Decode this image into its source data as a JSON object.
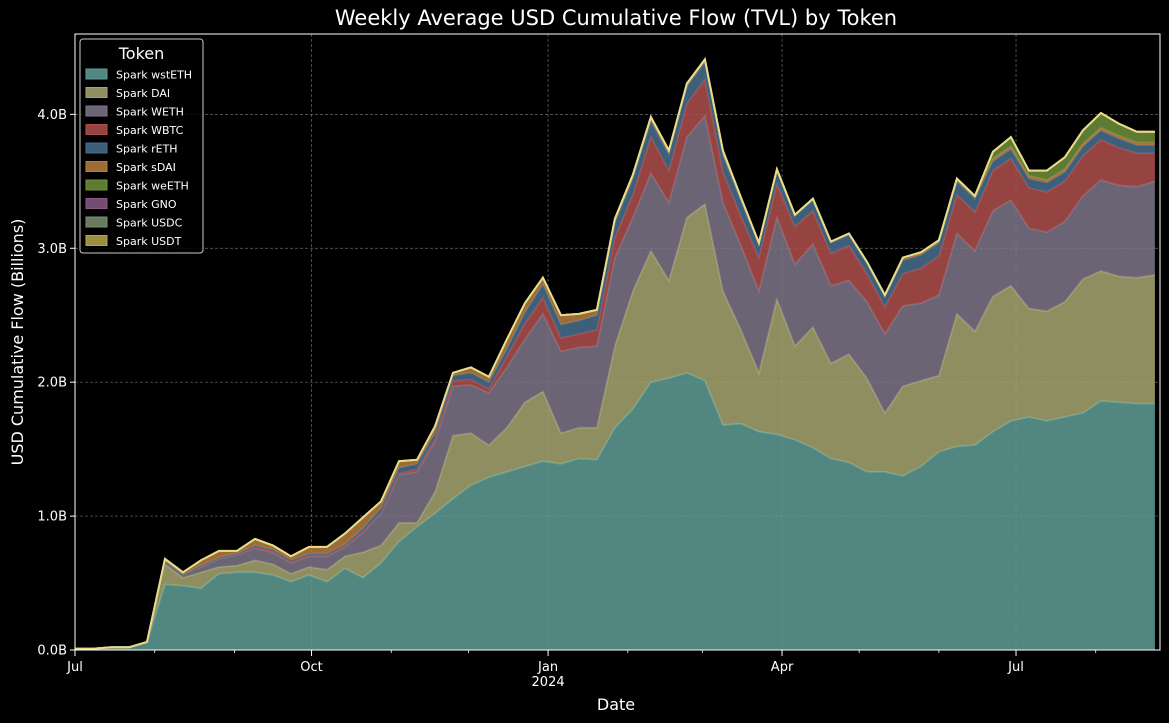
{
  "chart_data": {
    "type": "area",
    "stacked": true,
    "title": "Weekly Average USD Cumulative Flow (TVL) by Token",
    "xlabel": "Date",
    "ylabel": "USD Cumulative Flow (Billions)",
    "ylim": [
      0,
      4.6
    ],
    "yticks": [
      {
        "value": 0,
        "label": "0.0B"
      },
      {
        "value": 1,
        "label": "1.0B"
      },
      {
        "value": 2,
        "label": "2.0B"
      },
      {
        "value": 3,
        "label": "3.0B"
      },
      {
        "value": 4,
        "label": "4.0B"
      }
    ],
    "xticks": [
      {
        "date": "2023-07-01",
        "label": "Jul",
        "sub": ""
      },
      {
        "date": "2023-10-01",
        "label": "Oct",
        "sub": ""
      },
      {
        "date": "2024-01-01",
        "label": "Jan",
        "sub": "2024"
      },
      {
        "date": "2024-04-01",
        "label": "Apr",
        "sub": ""
      },
      {
        "date": "2024-07-01",
        "label": "Jul",
        "sub": ""
      }
    ],
    "xlim": [
      "2023-07-01",
      "2024-08-26"
    ],
    "grid": true,
    "legend": {
      "title": "Token",
      "position": "top-left"
    },
    "x": [
      "2023-07-01",
      "2023-07-08",
      "2023-07-15",
      "2023-07-22",
      "2023-07-29",
      "2023-08-05",
      "2023-08-12",
      "2023-08-19",
      "2023-08-26",
      "2023-09-02",
      "2023-09-09",
      "2023-09-16",
      "2023-09-23",
      "2023-09-30",
      "2023-10-07",
      "2023-10-14",
      "2023-10-21",
      "2023-10-28",
      "2023-11-04",
      "2023-11-11",
      "2023-11-18",
      "2023-11-25",
      "2023-12-02",
      "2023-12-09",
      "2023-12-16",
      "2023-12-23",
      "2023-12-30",
      "2024-01-06",
      "2024-01-13",
      "2024-01-20",
      "2024-01-27",
      "2024-02-03",
      "2024-02-10",
      "2024-02-17",
      "2024-02-24",
      "2024-03-02",
      "2024-03-09",
      "2024-03-16",
      "2024-03-23",
      "2024-03-30",
      "2024-04-06",
      "2024-04-13",
      "2024-04-20",
      "2024-04-27",
      "2024-05-04",
      "2024-05-11",
      "2024-05-18",
      "2024-05-25",
      "2024-06-01",
      "2024-06-08",
      "2024-06-15",
      "2024-06-22",
      "2024-06-29",
      "2024-07-06",
      "2024-07-13",
      "2024-07-20",
      "2024-07-27",
      "2024-08-03",
      "2024-08-10",
      "2024-08-17",
      "2024-08-24"
    ],
    "series": [
      {
        "name": "Spark wstETH",
        "color": "#5f9e98",
        "values": [
          0.01,
          0.01,
          0.02,
          0.02,
          0.06,
          0.49,
          0.48,
          0.46,
          0.57,
          0.58,
          0.58,
          0.56,
          0.51,
          0.56,
          0.51,
          0.61,
          0.54,
          0.65,
          0.81,
          0.92,
          1.02,
          1.13,
          1.23,
          1.29,
          1.33,
          1.37,
          1.41,
          1.39,
          1.43,
          1.42,
          1.66,
          1.8,
          2.0,
          2.03,
          2.07,
          2.01,
          1.68,
          1.69,
          1.63,
          1.61,
          1.57,
          1.51,
          1.43,
          1.4,
          1.33,
          1.33,
          1.3,
          1.37,
          1.48,
          1.52,
          1.53,
          1.63,
          1.71,
          1.74,
          1.71,
          1.74,
          1.77,
          1.86,
          1.85,
          1.84,
          1.84
        ]
      },
      {
        "name": "Spark DAI",
        "color": "#a7a771",
        "values": [
          0,
          0,
          0,
          0,
          0,
          0.15,
          0.06,
          0.12,
          0.05,
          0.05,
          0.09,
          0.08,
          0.06,
          0.06,
          0.09,
          0.09,
          0.19,
          0.13,
          0.14,
          0.03,
          0.16,
          0.47,
          0.39,
          0.24,
          0.33,
          0.48,
          0.52,
          0.23,
          0.23,
          0.24,
          0.61,
          0.88,
          0.98,
          0.73,
          1.16,
          1.32,
          1.0,
          0.7,
          0.44,
          1.01,
          0.7,
          0.9,
          0.71,
          0.81,
          0.7,
          0.44,
          0.67,
          0.64,
          0.57,
          0.99,
          0.85,
          1.01,
          1.01,
          0.81,
          0.82,
          0.86,
          1.0,
          0.97,
          0.94,
          0.94,
          0.96
        ]
      },
      {
        "name": "Spark WETH",
        "color": "#7e7689",
        "values": [
          0,
          0,
          0,
          0,
          0,
          0.02,
          0.02,
          0.04,
          0.06,
          0.08,
          0.09,
          0.09,
          0.08,
          0.08,
          0.1,
          0.07,
          0.15,
          0.24,
          0.36,
          0.38,
          0.38,
          0.37,
          0.36,
          0.39,
          0.45,
          0.47,
          0.58,
          0.61,
          0.6,
          0.61,
          0.66,
          0.55,
          0.58,
          0.58,
          0.6,
          0.66,
          0.66,
          0.63,
          0.61,
          0.61,
          0.61,
          0.62,
          0.58,
          0.55,
          0.57,
          0.59,
          0.6,
          0.58,
          0.6,
          0.6,
          0.6,
          0.64,
          0.64,
          0.6,
          0.59,
          0.6,
          0.62,
          0.68,
          0.68,
          0.68,
          0.7
        ]
      },
      {
        "name": "Spark WBTC",
        "color": "#b0504e",
        "values": [
          0,
          0,
          0,
          0,
          0,
          0,
          0,
          0.01,
          0.01,
          0.01,
          0.01,
          0.01,
          0.01,
          0.01,
          0.01,
          0.01,
          0.01,
          0.01,
          0.01,
          0.02,
          0.02,
          0.04,
          0.04,
          0.03,
          0.08,
          0.12,
          0.12,
          0.1,
          0.1,
          0.12,
          0.15,
          0.17,
          0.27,
          0.24,
          0.25,
          0.27,
          0.23,
          0.22,
          0.25,
          0.25,
          0.28,
          0.25,
          0.24,
          0.26,
          0.21,
          0.2,
          0.24,
          0.26,
          0.29,
          0.29,
          0.29,
          0.3,
          0.31,
          0.3,
          0.3,
          0.3,
          0.3,
          0.3,
          0.28,
          0.25,
          0.21
        ]
      },
      {
        "name": "Spark rETH",
        "color": "#49708f",
        "values": [
          0,
          0,
          0,
          0,
          0,
          0,
          0,
          0,
          0,
          0,
          0.01,
          0.01,
          0.01,
          0.01,
          0.01,
          0.01,
          0.02,
          0.03,
          0.04,
          0.04,
          0.04,
          0.04,
          0.05,
          0.05,
          0.06,
          0.08,
          0.1,
          0.1,
          0.1,
          0.11,
          0.11,
          0.12,
          0.12,
          0.12,
          0.13,
          0.13,
          0.12,
          0.12,
          0.1,
          0.1,
          0.08,
          0.08,
          0.08,
          0.08,
          0.08,
          0.08,
          0.1,
          0.1,
          0.1,
          0.1,
          0.1,
          0.07,
          0.07,
          0.07,
          0.07,
          0.07,
          0.07,
          0.07,
          0.07,
          0.06,
          0.06
        ]
      },
      {
        "name": "Spark sDAI",
        "color": "#b97f40",
        "values": [
          0,
          0,
          0,
          0,
          0,
          0.02,
          0.02,
          0.04,
          0.05,
          0.02,
          0.05,
          0.03,
          0.03,
          0.05,
          0.05,
          0.08,
          0.08,
          0.05,
          0.05,
          0.03,
          0.05,
          0.02,
          0.04,
          0.04,
          0.07,
          0.07,
          0.05,
          0.07,
          0.05,
          0.04,
          0.03,
          0.03,
          0.03,
          0.03,
          0.02,
          0.02,
          0.04,
          0.02,
          0.01,
          0.01,
          0.01,
          0.01,
          0.01,
          0.01,
          0.01,
          0.01,
          0.02,
          0.02,
          0.02,
          0.02,
          0.02,
          0.02,
          0.02,
          0.02,
          0.02,
          0.02,
          0.02,
          0.02,
          0.02,
          0.02,
          0.02
        ]
      },
      {
        "name": "Spark weETH",
        "color": "#6f913d",
        "values": [
          0,
          0,
          0,
          0,
          0,
          0,
          0,
          0,
          0,
          0,
          0,
          0,
          0,
          0,
          0,
          0,
          0,
          0,
          0,
          0,
          0,
          0,
          0,
          0,
          0,
          0,
          0,
          0,
          0,
          0,
          0,
          0,
          0,
          0,
          0,
          0,
          0,
          0,
          0,
          0,
          0,
          0,
          0,
          0,
          0,
          0,
          0,
          0,
          0,
          0,
          0,
          0.05,
          0.07,
          0.04,
          0.07,
          0.09,
          0.1,
          0.11,
          0.09,
          0.08,
          0.08
        ]
      },
      {
        "name": "Spark GNO",
        "color": "#8a5a85",
        "values": [
          0,
          0,
          0,
          0,
          0,
          0,
          0,
          0,
          0,
          0,
          0,
          0,
          0,
          0,
          0,
          0,
          0,
          0,
          0,
          0,
          0,
          0,
          0,
          0,
          0,
          0,
          0,
          0,
          0,
          0,
          0,
          0,
          0,
          0,
          0,
          0,
          0,
          0,
          0,
          0,
          0,
          0,
          0,
          0,
          0,
          0,
          0,
          0,
          0,
          0,
          0,
          0,
          0,
          0,
          0,
          0,
          0,
          0,
          0,
          0,
          0
        ]
      },
      {
        "name": "Spark USDC",
        "color": "#7b8f72",
        "values": [
          0,
          0,
          0,
          0,
          0,
          0,
          0,
          0,
          0,
          0,
          0,
          0,
          0,
          0,
          0,
          0,
          0,
          0,
          0,
          0,
          0,
          0,
          0,
          0,
          0,
          0,
          0,
          0,
          0,
          0,
          0,
          0,
          0,
          0,
          0,
          0,
          0,
          0,
          0,
          0,
          0,
          0,
          0,
          0,
          0,
          0,
          0,
          0,
          0,
          0,
          0,
          0,
          0,
          0,
          0,
          0,
          0,
          0,
          0,
          0,
          0
        ]
      },
      {
        "name": "Spark USDT",
        "color": "#b8a84e",
        "values": [
          0,
          0,
          0,
          0,
          0,
          0,
          0,
          0,
          0,
          0,
          0,
          0,
          0,
          0,
          0,
          0,
          0,
          0,
          0,
          0,
          0,
          0,
          0,
          0,
          0,
          0,
          0,
          0,
          0,
          0,
          0,
          0,
          0,
          0,
          0,
          0,
          0,
          0,
          0,
          0,
          0,
          0,
          0,
          0,
          0,
          0,
          0,
          0,
          0,
          0,
          0,
          0,
          0,
          0,
          0,
          0,
          0,
          0,
          0,
          0,
          0
        ]
      }
    ]
  }
}
